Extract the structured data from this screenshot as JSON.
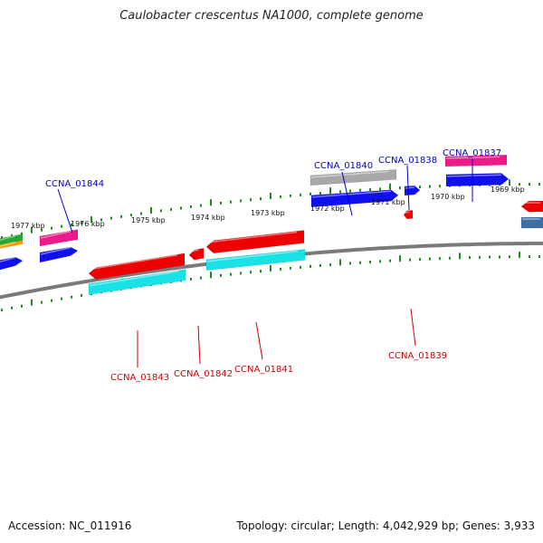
{
  "title": "Caulobacter crescentus NA1000, complete genome",
  "footer": {
    "accession": "Accession: NC_011916",
    "topology": "Topology: circular; Length: 4,042,929 bp; Genes: 3,933"
  },
  "colors": {
    "backbone": "#7a7a7a",
    "tick": "#1f8a1f",
    "forward_label": "#0000cc",
    "reverse_label": "#cc0000",
    "blue": "#1010ee",
    "red": "#ee0000",
    "pink": "#ee1a8a",
    "cyan": "#19e2e6",
    "gray": "#a8a8a8",
    "green": "#22aa33",
    "orange": "#ff9900",
    "steel": "#3d6ea6"
  },
  "kbp_labels": [
    "1977 kbp",
    "1976 kbp",
    "1975 kbp",
    "1974 kbp",
    "1973 kbp",
    "1972 kbp",
    "1971 kbp",
    "1970 kbp",
    "1969 kbp"
  ],
  "gene_labels": [
    {
      "name": "CCNA_01844",
      "strand": "forward"
    },
    {
      "name": "CCNA_01840",
      "strand": "forward"
    },
    {
      "name": "CCNA_01838",
      "strand": "forward"
    },
    {
      "name": "CCNA_01837",
      "strand": "forward"
    },
    {
      "name": "CCNA_01843",
      "strand": "reverse"
    },
    {
      "name": "CCNA_01842",
      "strand": "reverse"
    },
    {
      "name": "CCNA_01841",
      "strand": "reverse"
    },
    {
      "name": "CCNA_01839",
      "strand": "reverse"
    }
  ]
}
